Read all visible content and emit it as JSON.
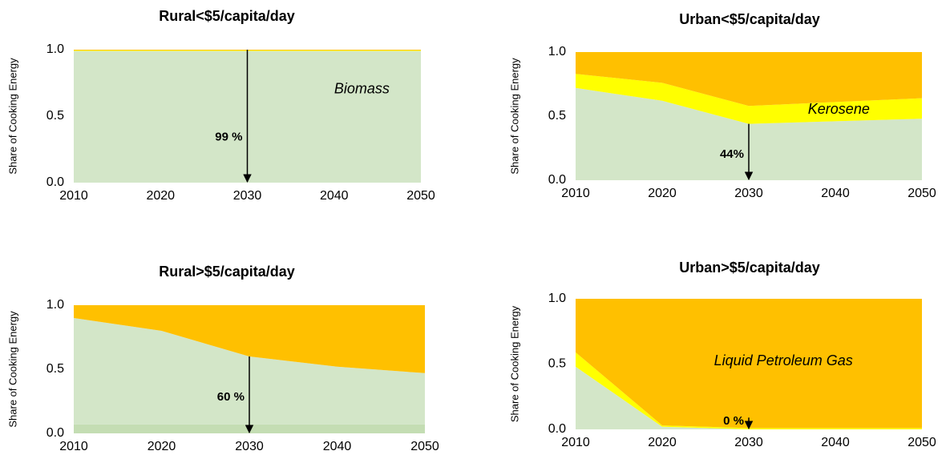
{
  "chart_data": [
    {
      "type": "area",
      "title": "Rural<$5/capita/day",
      "ylabel": "Share of Cooking Energy",
      "x": [
        2010,
        2020,
        2030,
        2040,
        2050
      ],
      "xlim": [
        2010,
        2050
      ],
      "xticks": [
        2010,
        2020,
        2030,
        2040,
        2050
      ],
      "ylim": [
        0,
        1
      ],
      "yticks": [
        {
          "value": 0,
          "label": "0.0"
        },
        {
          "value": 0.5,
          "label": "0.5"
        },
        {
          "value": 1,
          "label": "1.0"
        }
      ],
      "series": [
        {
          "color": "#d3e6c8",
          "values": [
            0.99,
            0.99,
            0.99,
            0.99,
            0.99
          ]
        },
        {
          "color": "#ffff00",
          "values": [
            0.005,
            0.005,
            0.005,
            0.005,
            0.005
          ]
        },
        {
          "color": "#ffc000",
          "values": [
            0.005,
            0.005,
            0.005,
            0.005,
            0.005
          ]
        }
      ],
      "annotations": [
        "Biomass",
        "99 %"
      ]
    },
    {
      "type": "area",
      "title": "Urban<$5/capita/day",
      "ylabel": "Share of Cooking Energy",
      "x": [
        2010,
        2020,
        2030,
        2040,
        2050
      ],
      "xlim": [
        2010,
        2050
      ],
      "xticks": [
        2010,
        2020,
        2030,
        2040,
        2050
      ],
      "ylim": [
        0,
        1
      ],
      "yticks": [
        {
          "value": 0,
          "label": "0.0"
        },
        {
          "value": 0.5,
          "label": "0.5"
        },
        {
          "value": 1,
          "label": "1.0"
        }
      ],
      "series": [
        {
          "color": "#d3e6c8",
          "values": [
            0.72,
            0.62,
            0.44,
            0.46,
            0.48
          ]
        },
        {
          "color": "#ffff00",
          "values": [
            0.11,
            0.14,
            0.14,
            0.15,
            0.16
          ]
        },
        {
          "color": "#ffc000",
          "values": [
            0.17,
            0.24,
            0.42,
            0.39,
            0.36
          ]
        }
      ],
      "annotations": [
        "Kerosene",
        "44%"
      ]
    },
    {
      "type": "area",
      "title": "Rural>$5/capita/day",
      "ylabel": "Share of Cooking Energy",
      "x": [
        2010,
        2020,
        2030,
        2040,
        2050
      ],
      "xlim": [
        2010,
        2050
      ],
      "xticks": [
        2010,
        2020,
        2030,
        2040,
        2050
      ],
      "ylim": [
        0,
        1
      ],
      "yticks": [
        {
          "value": 0,
          "label": "0.0"
        },
        {
          "value": 0.5,
          "label": "0.5"
        },
        {
          "value": 1,
          "label": "1.0"
        }
      ],
      "series": [
        {
          "color": "#c4ddb3",
          "values": [
            0.07,
            0.07,
            0.07,
            0.07,
            0.07
          ]
        },
        {
          "color": "#d3e6c8",
          "values": [
            0.83,
            0.73,
            0.53,
            0.45,
            0.4
          ]
        },
        {
          "color": "#ffc000",
          "values": [
            0.1,
            0.2,
            0.4,
            0.48,
            0.53
          ]
        }
      ],
      "annotations": [
        "60 %"
      ]
    },
    {
      "type": "area",
      "title": "Urban>$5/capita/day",
      "ylabel": "Share of Cooking Energy",
      "x": [
        2010,
        2020,
        2030,
        2040,
        2050
      ],
      "xlim": [
        2010,
        2050
      ],
      "xticks": [
        2010,
        2020,
        2030,
        2040,
        2050
      ],
      "ylim": [
        0,
        1
      ],
      "yticks": [
        {
          "value": 0,
          "label": "0.0"
        },
        {
          "value": 0.5,
          "label": "0.5"
        },
        {
          "value": 1,
          "label": "1.0"
        }
      ],
      "series": [
        {
          "color": "#d3e6c8",
          "values": [
            0.48,
            0.02,
            0,
            0,
            0
          ]
        },
        {
          "color": "#ffff00",
          "values": [
            0.11,
            0.01,
            0.01,
            0.01,
            0.01
          ]
        },
        {
          "color": "#ffc000",
          "values": [
            0.41,
            0.97,
            0.99,
            0.99,
            0.99
          ]
        }
      ],
      "annotations": [
        "Liquid Petroleum Gas",
        "0 %"
      ]
    }
  ]
}
